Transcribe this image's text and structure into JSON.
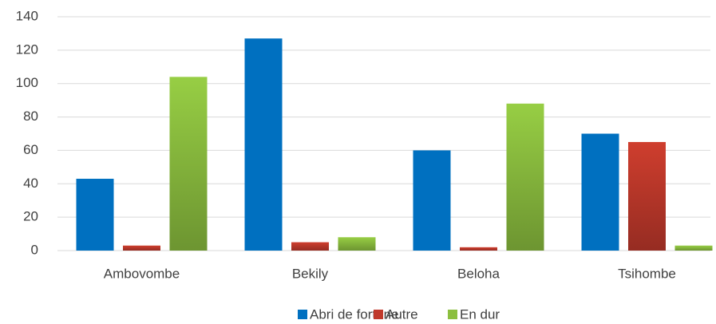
{
  "chart_data": {
    "type": "bar",
    "categories": [
      "Ambovombe",
      "Bekily",
      "Beloha",
      "Tsihombe"
    ],
    "series": [
      {
        "name": "Abri de fortune",
        "color": "#0070c0",
        "values": [
          43,
          127,
          60,
          70
        ]
      },
      {
        "name": "Autre",
        "color": "#c0392b",
        "values": [
          3,
          5,
          2,
          65
        ]
      },
      {
        "name": "En dur",
        "color": "#8cbf3f",
        "values": [
          104,
          8,
          88,
          3
        ]
      }
    ],
    "ylim": [
      0,
      140
    ],
    "yticks": [
      0,
      20,
      40,
      60,
      80,
      100,
      120,
      140
    ],
    "grid": true,
    "legend": "bottom"
  }
}
